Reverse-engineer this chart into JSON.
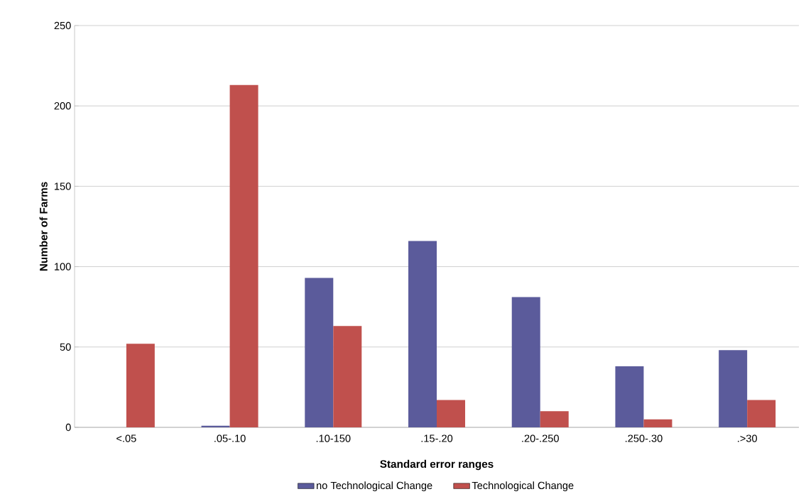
{
  "chart_data": {
    "type": "bar",
    "xlabel": "Standard error ranges",
    "ylabel": "Number of Farms",
    "categories": [
      "<.05",
      ".05-.10",
      ".10-150",
      ".15-.20",
      ".20-.250",
      ".250-.30",
      ".>30"
    ],
    "series": [
      {
        "name": "no Technological Change",
        "color": "#5b5b9b",
        "values": [
          0,
          1,
          93,
          116,
          81,
          38,
          48
        ]
      },
      {
        "name": "Technological Change",
        "color": "#c0504d",
        "values": [
          52,
          213,
          63,
          17,
          10,
          5,
          17
        ]
      }
    ],
    "ylim": [
      0,
      250
    ],
    "yticks": [
      0,
      50,
      100,
      150,
      200,
      250
    ],
    "grid": "y",
    "legend": "bottom"
  }
}
